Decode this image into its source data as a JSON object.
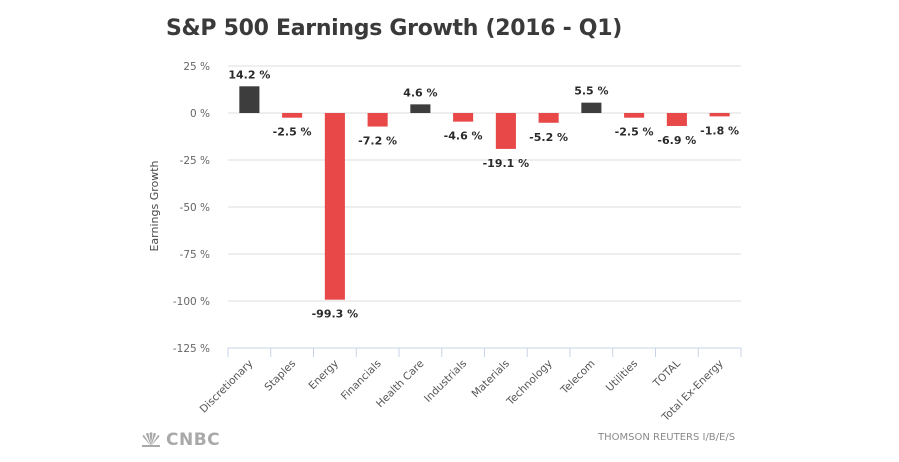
{
  "chart_data": {
    "type": "bar",
    "title": "S&P 500 Earnings Growth (2016 - Q1)",
    "xlabel": "",
    "ylabel": "Earnings Growth",
    "ylim": [
      -125,
      25
    ],
    "yticks": [
      25,
      0,
      -25,
      -50,
      -75,
      -100,
      -125
    ],
    "ytick_labels": [
      "25 %",
      "0 %",
      "-25 %",
      "-50 %",
      "-75 %",
      "-100 %",
      "-125 %"
    ],
    "grid": true,
    "categories": [
      "Discretionary",
      "Staples",
      "Energy",
      "Financials",
      "Health Care",
      "Industrials",
      "Materials",
      "Technology",
      "Telecom",
      "Utilities",
      "TOTAL",
      "Total Ex-Energy"
    ],
    "values": [
      14.2,
      -2.5,
      -99.3,
      -7.2,
      4.6,
      -4.6,
      -19.1,
      -5.2,
      5.5,
      -2.5,
      -6.9,
      -1.8
    ],
    "data_labels": [
      "14.2 %",
      "-2.5 %",
      "-99.3 %",
      "-7.2 %",
      "4.6 %",
      "-4.6 %",
      "-19.1 %",
      "-5.2 %",
      "5.5 %",
      "-2.5 %",
      "-6.9 %",
      "-1.8 %"
    ],
    "colors": {
      "positive": "#3d3d3d",
      "negative": "#e84848"
    },
    "legend": "none"
  },
  "footer": {
    "brand": "CNBC",
    "source": "THOMSON REUTERS I/B/E/S"
  }
}
